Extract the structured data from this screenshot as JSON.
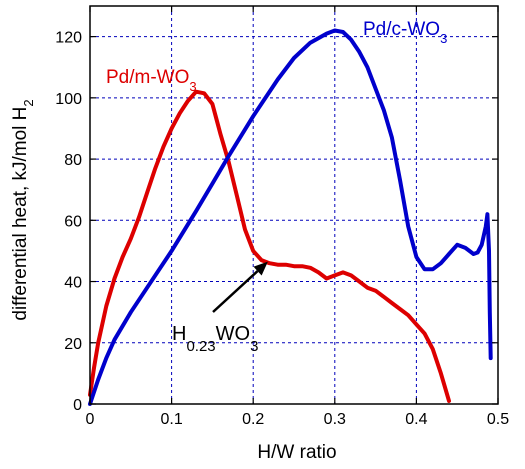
{
  "chart_data": {
    "type": "line",
    "xlabel": "H/W ratio",
    "ylabel": "differential heat, kJ/mol H",
    "ylabel_sub": "2",
    "xlim": [
      0,
      0.5
    ],
    "ylim": [
      0,
      130
    ],
    "x_ticks": [
      0,
      0.1,
      0.2,
      0.3,
      0.4,
      0.5
    ],
    "x_tick_labels": [
      "0",
      "0.1",
      "0.2",
      "0.3",
      "0.4",
      "0.5"
    ],
    "y_ticks": [
      0,
      20,
      40,
      60,
      80,
      100,
      120
    ],
    "y_tick_labels": [
      "0",
      "20",
      "40",
      "60",
      "80",
      "100",
      "120"
    ],
    "grid": true,
    "series": [
      {
        "name": "Pd/m-WO3",
        "label_main": "Pd/m-WO",
        "label_sub": "3",
        "color": "#dd0000",
        "x": [
          0,
          0.005,
          0.01,
          0.02,
          0.03,
          0.04,
          0.05,
          0.06,
          0.07,
          0.08,
          0.09,
          0.1,
          0.11,
          0.12,
          0.13,
          0.14,
          0.15,
          0.155,
          0.16,
          0.17,
          0.18,
          0.19,
          0.2,
          0.21,
          0.22,
          0.23,
          0.24,
          0.25,
          0.26,
          0.27,
          0.28,
          0.29,
          0.3,
          0.31,
          0.32,
          0.33,
          0.34,
          0.35,
          0.36,
          0.37,
          0.38,
          0.39,
          0.4,
          0.41,
          0.42,
          0.43,
          0.44
        ],
        "y": [
          3,
          12,
          20,
          32,
          41,
          48,
          54,
          61,
          69,
          77,
          84,
          90,
          95,
          99,
          102,
          101.5,
          98,
          93,
          88,
          79,
          68,
          57,
          50,
          47,
          46,
          45.5,
          45.5,
          45,
          45,
          44.5,
          43,
          41,
          42,
          43,
          42,
          40,
          38,
          37,
          35,
          33,
          31,
          29,
          26,
          23,
          18,
          10,
          1
        ]
      },
      {
        "name": "Pd/c-WO3",
        "label_main": "Pd/c-WO",
        "label_sub": "3",
        "color": "#0000cc",
        "x": [
          0,
          0.005,
          0.01,
          0.02,
          0.03,
          0.05,
          0.07,
          0.1,
          0.13,
          0.15,
          0.17,
          0.2,
          0.23,
          0.25,
          0.27,
          0.29,
          0.3,
          0.31,
          0.32,
          0.33,
          0.34,
          0.35,
          0.36,
          0.37,
          0.38,
          0.39,
          0.4,
          0.41,
          0.42,
          0.43,
          0.44,
          0.45,
          0.46,
          0.47,
          0.475,
          0.48,
          0.485,
          0.487,
          0.489,
          0.49,
          0.491
        ],
        "y": [
          0,
          4,
          8,
          15,
          21,
          30,
          38,
          50,
          63,
          72,
          81,
          94,
          106,
          113,
          118,
          121,
          122,
          121.5,
          119,
          115,
          110,
          103,
          96,
          87,
          73,
          58,
          48,
          44,
          44,
          46,
          49,
          52,
          51,
          49,
          49.5,
          52,
          58,
          62,
          50,
          30,
          15
        ]
      }
    ],
    "annotation": {
      "main": "H",
      "sub1": "0.23",
      "mid": "WO",
      "sub2": "3",
      "arrow_target": [
        0.218,
        46.5
      ]
    }
  }
}
